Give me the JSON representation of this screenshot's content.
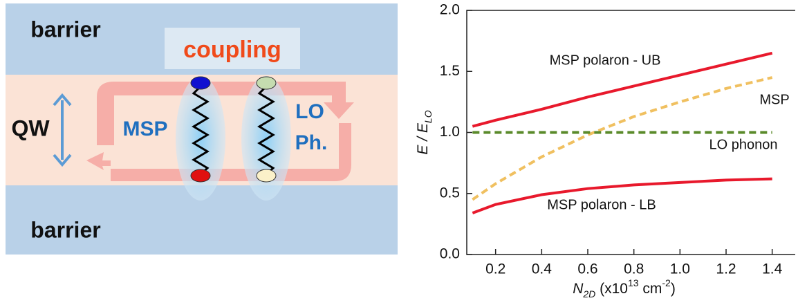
{
  "diagram": {
    "barrier_top": "barrier",
    "barrier_bottom": "barrier",
    "coupling": "coupling",
    "qw": "QW",
    "msp": "MSP",
    "lo_line1": "LO",
    "lo_line2": "Ph."
  },
  "chart_data": {
    "type": "line",
    "x_label": [
      "N",
      "2D",
      " (x10",
      "13",
      " cm",
      "-2",
      ")"
    ],
    "y_label": [
      "E / E",
      "LO"
    ],
    "x": [
      0.1,
      0.2,
      0.4,
      0.6,
      0.8,
      1.0,
      1.2,
      1.4
    ],
    "series": [
      {
        "name": "MSP polaron - UB",
        "color": "#e8192c",
        "dash": false,
        "values": [
          1.05,
          1.1,
          1.19,
          1.29,
          1.38,
          1.47,
          1.56,
          1.65
        ]
      },
      {
        "name": "MSP",
        "color": "#f0c060",
        "dash": true,
        "values": [
          0.45,
          0.58,
          0.8,
          0.98,
          1.13,
          1.25,
          1.36,
          1.45
        ]
      },
      {
        "name": "LO phonon",
        "color": "#5a8a2a",
        "dash": true,
        "values": [
          1.0,
          1.0,
          1.0,
          1.0,
          1.0,
          1.0,
          1.0,
          1.0
        ]
      },
      {
        "name": "MSP polaron - LB",
        "color": "#e8192c",
        "dash": false,
        "values": [
          0.34,
          0.41,
          0.49,
          0.54,
          0.57,
          0.59,
          0.61,
          0.62
        ]
      }
    ],
    "xlim": [
      0.075,
      1.5
    ],
    "ylim": [
      0,
      2
    ],
    "xticks": [
      0.2,
      0.4,
      0.6,
      0.8,
      {
        "value": 1.0,
        "label": "1.0"
      },
      1.2,
      1.4
    ],
    "yticks": [
      {
        "value": 0,
        "label": "0.0"
      },
      {
        "value": 0.5,
        "label": "0.5"
      },
      {
        "value": 1,
        "label": "1.0"
      },
      {
        "value": 1.5,
        "label": "1.5"
      },
      {
        "value": 2,
        "label": "2.0"
      }
    ]
  }
}
